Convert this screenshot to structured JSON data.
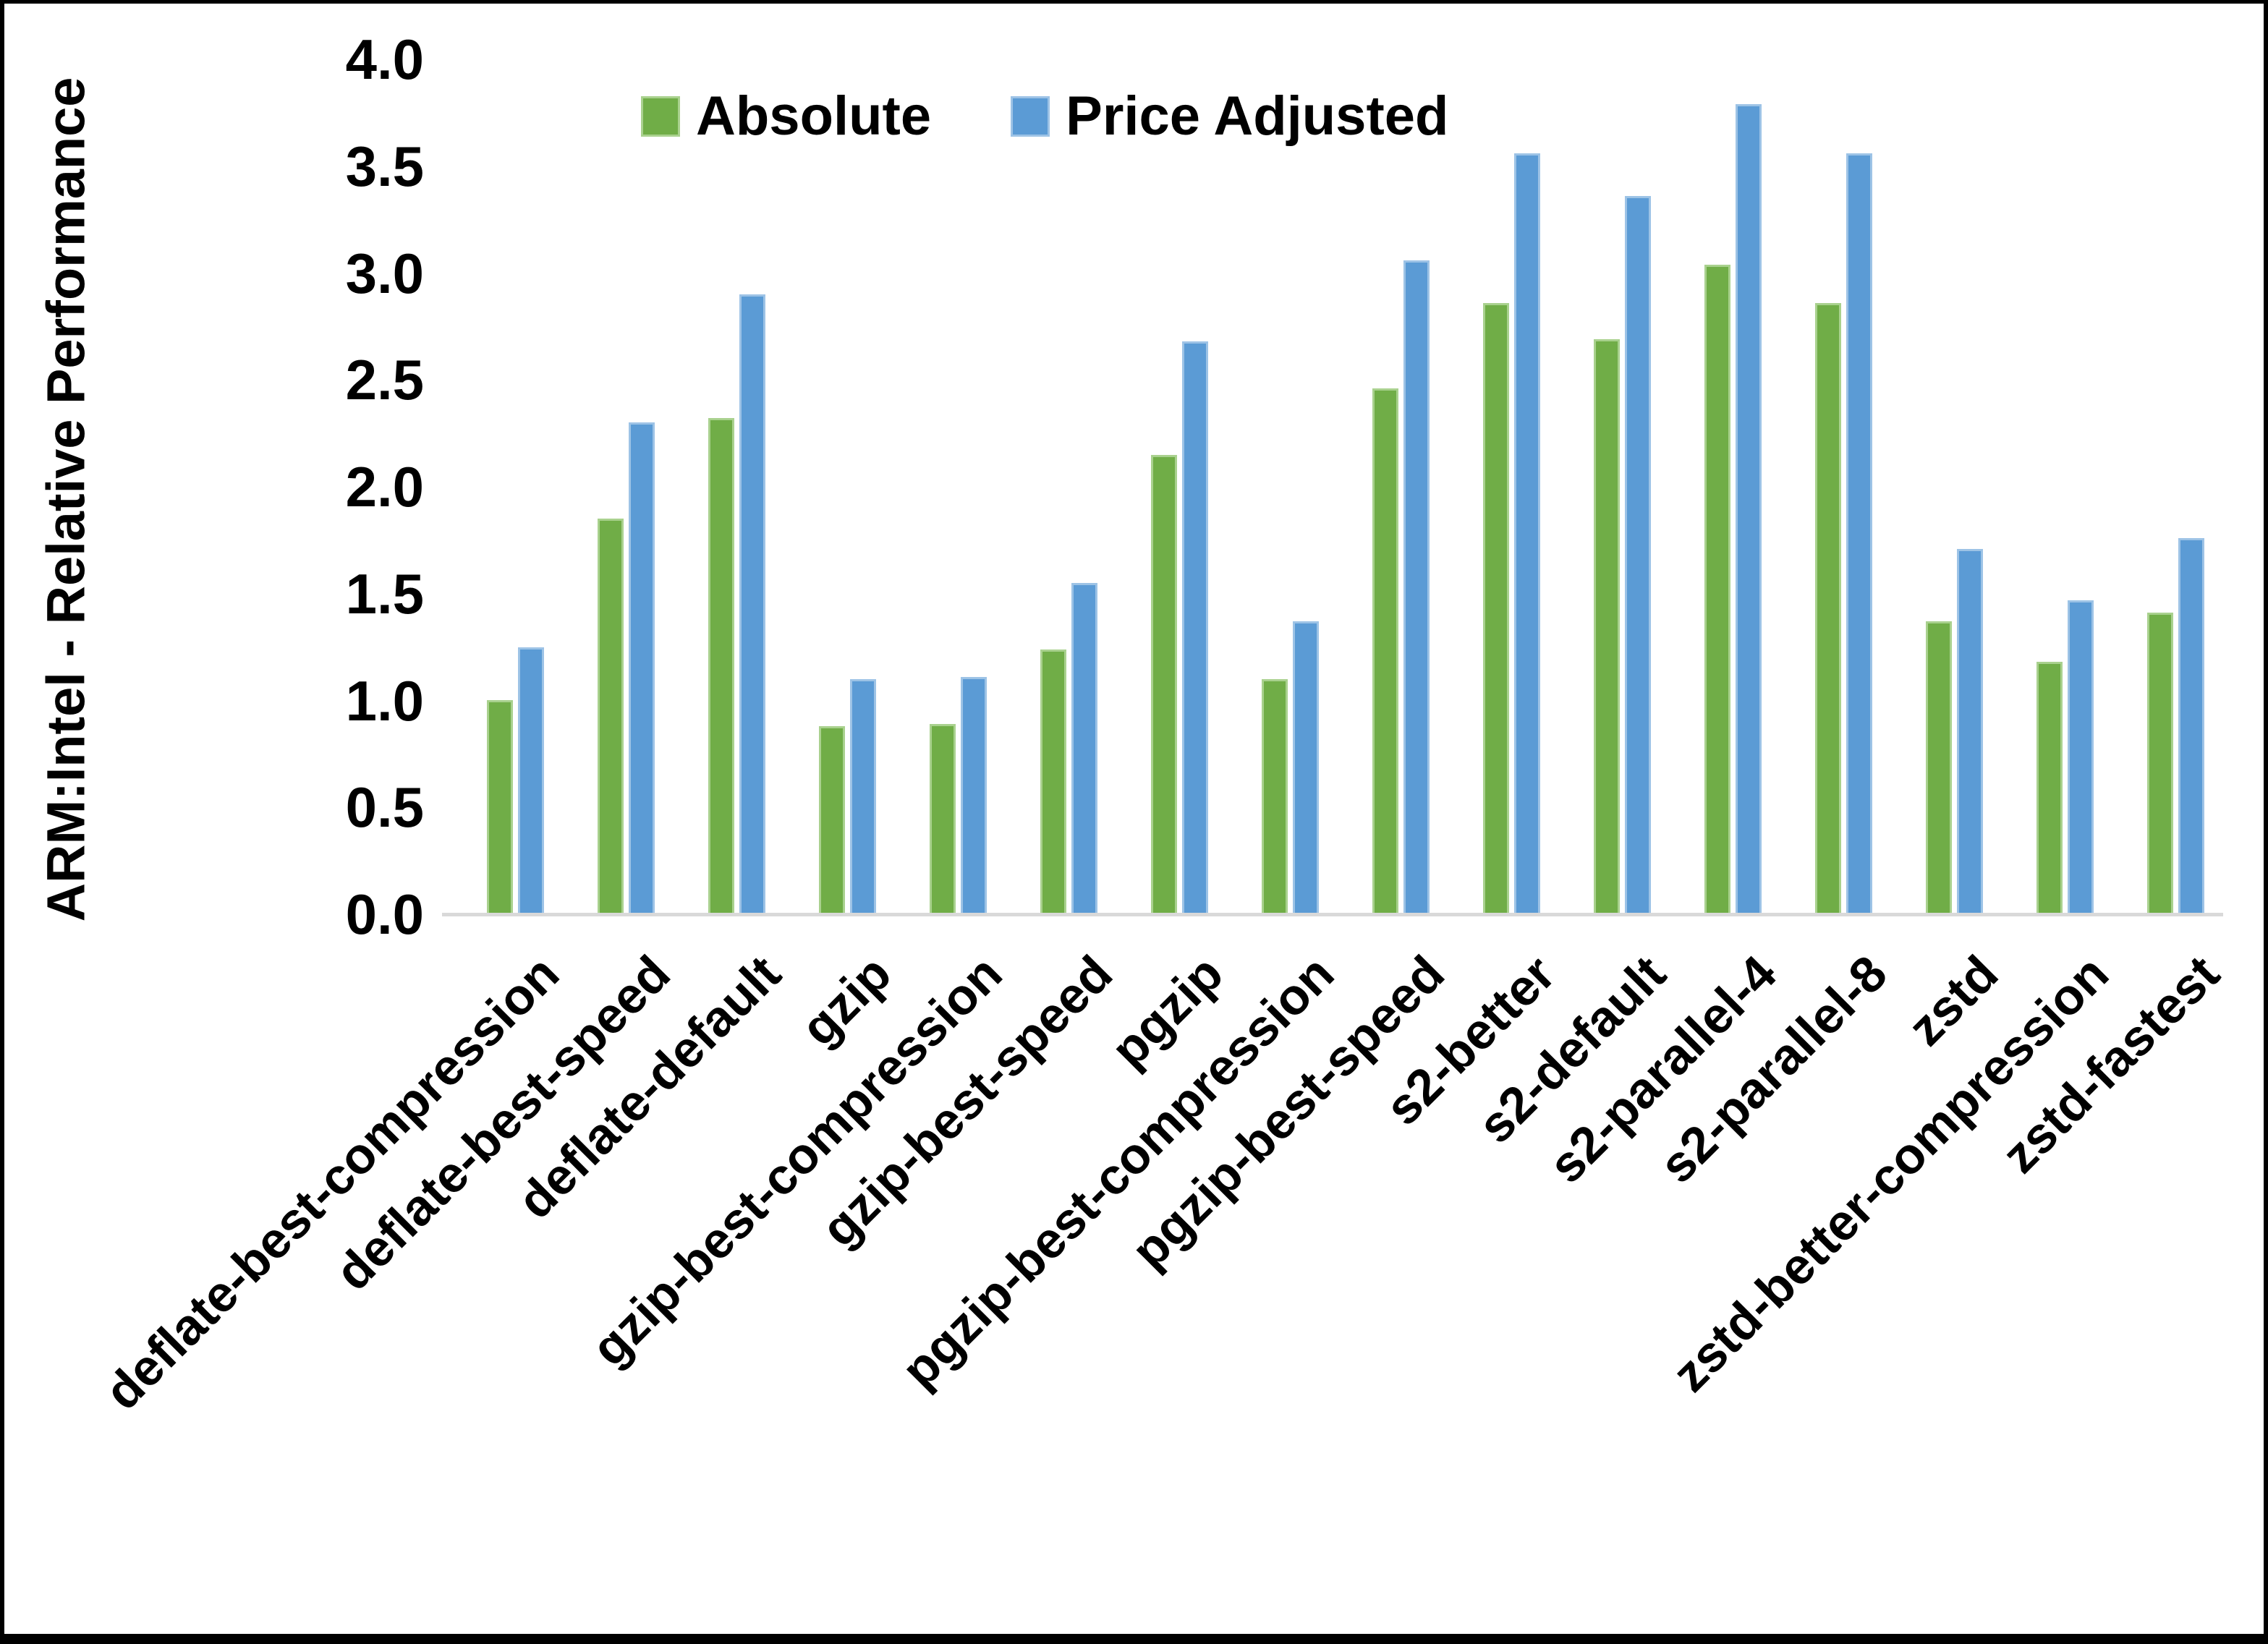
{
  "y_axis_title": "ARM:Intel - Relative Performance",
  "legend": [
    {
      "label": "Absolute",
      "color": "#70ad47",
      "border": "#a9d18e"
    },
    {
      "label": "Price Adjusted",
      "color": "#5b9bd5",
      "border": "#9dc3e6"
    }
  ],
  "axis_line_color": "#d9d9d9",
  "chart_data": {
    "type": "bar",
    "title": "",
    "xlabel": "",
    "ylabel": "ARM:Intel - Relative Performance",
    "ylim": [
      0,
      4
    ],
    "ytick_step": 0.5,
    "y_ticks": [
      "0.0",
      "0.5",
      "1.0",
      "1.5",
      "2.0",
      "2.5",
      "3.0",
      "3.5",
      "4.0"
    ],
    "grid": false,
    "legend_position": "top-center",
    "categories": [
      "deflate-best-compression",
      "deflate-best-speed",
      "deflate-default",
      "gzip",
      "gzip-best-compression",
      "gzip-best-speed",
      "pgzip",
      "pgzip-best-compression",
      "pgzip-best-speed",
      "s2-better",
      "s2-default",
      "s2-parallel-4",
      "s2-parallel-8",
      "zstd",
      "zstd-better-compression",
      "zstd-fastest"
    ],
    "series": [
      {
        "name": "Absolute",
        "color": "#70ad47",
        "border": "#a9d18e",
        "values": [
          1.0,
          1.85,
          2.32,
          0.88,
          0.89,
          1.24,
          2.15,
          1.1,
          2.46,
          2.86,
          2.69,
          3.04,
          2.86,
          1.37,
          1.18,
          1.41
        ]
      },
      {
        "name": "Price Adjusted",
        "color": "#5b9bd5",
        "border": "#9dc3e6",
        "values": [
          1.25,
          2.3,
          2.9,
          1.1,
          1.11,
          1.55,
          2.68,
          1.37,
          3.06,
          3.56,
          3.36,
          3.79,
          3.56,
          1.71,
          1.47,
          1.76
        ]
      }
    ]
  }
}
